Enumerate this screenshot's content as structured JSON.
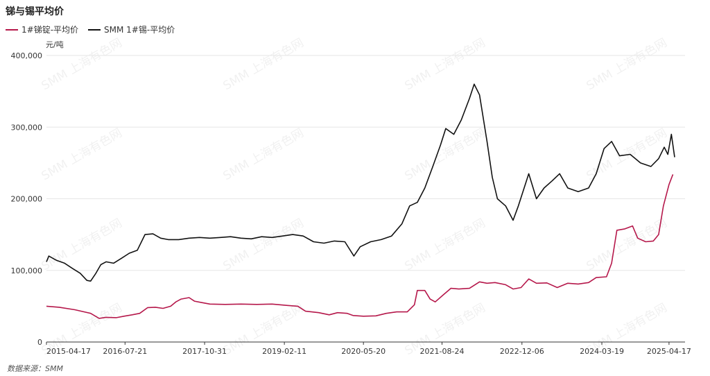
{
  "title": "锑与锡平均价",
  "unit": "元/吨",
  "source": "数据来源：SMM",
  "watermark": "SMM 上海有色网",
  "chart_data": {
    "type": "line",
    "title": "锑与锡平均价",
    "ylabel": "元/吨",
    "ylim": [
      0,
      400000
    ],
    "yticks": [
      0,
      100000,
      200000,
      300000,
      400000
    ],
    "ytick_labels": [
      "0",
      "100,000",
      "200,000",
      "300,000",
      "400,000"
    ],
    "xlim": [
      "2015-04-17",
      "2025-07-20"
    ],
    "xticks": [
      "2015-04-17",
      "2016-07-21",
      "2017-10-31",
      "2019-02-11",
      "2020-05-20",
      "2021-08-24",
      "2022-12-06",
      "2024-03-19",
      "2025-04-17"
    ],
    "grid": true,
    "legend_position": "top-left",
    "series": [
      {
        "name": "1#锑锭-平均价",
        "color": "#b5174a",
        "points": [
          [
            "2015-04-17",
            50000
          ],
          [
            "2015-07-01",
            48500
          ],
          [
            "2015-10-01",
            45000
          ],
          [
            "2016-01-01",
            40000
          ],
          [
            "2016-02-20",
            33000
          ],
          [
            "2016-04-01",
            34500
          ],
          [
            "2016-06-01",
            34000
          ],
          [
            "2016-07-15",
            36000
          ],
          [
            "2016-09-01",
            38000
          ],
          [
            "2016-10-15",
            40000
          ],
          [
            "2016-12-01",
            48000
          ],
          [
            "2017-01-15",
            48500
          ],
          [
            "2017-03-01",
            47000
          ],
          [
            "2017-04-15",
            50000
          ],
          [
            "2017-05-15",
            56000
          ],
          [
            "2017-06-15",
            60000
          ],
          [
            "2017-08-01",
            62000
          ],
          [
            "2017-09-01",
            57000
          ],
          [
            "2017-10-15",
            55000
          ],
          [
            "2017-12-01",
            53000
          ],
          [
            "2018-03-01",
            52500
          ],
          [
            "2018-06-01",
            53000
          ],
          [
            "2018-09-01",
            52500
          ],
          [
            "2018-12-01",
            53000
          ],
          [
            "2019-03-01",
            51000
          ],
          [
            "2019-05-01",
            50000
          ],
          [
            "2019-06-15",
            43000
          ],
          [
            "2019-09-01",
            41000
          ],
          [
            "2019-11-01",
            38000
          ],
          [
            "2019-12-20",
            41000
          ],
          [
            "2020-02-15",
            40000
          ],
          [
            "2020-03-20",
            37000
          ],
          [
            "2020-05-20",
            36000
          ],
          [
            "2020-08-01",
            36500
          ],
          [
            "2020-10-01",
            40000
          ],
          [
            "2020-12-01",
            42000
          ],
          [
            "2021-02-01",
            42000
          ],
          [
            "2021-03-15",
            52000
          ],
          [
            "2021-04-01",
            72000
          ],
          [
            "2021-05-15",
            72000
          ],
          [
            "2021-06-15",
            60000
          ],
          [
            "2021-07-15",
            56000
          ],
          [
            "2021-09-01",
            66000
          ],
          [
            "2021-10-15",
            75000
          ],
          [
            "2021-12-01",
            74000
          ],
          [
            "2022-02-01",
            75000
          ],
          [
            "2022-04-01",
            84000
          ],
          [
            "2022-05-15",
            82000
          ],
          [
            "2022-07-01",
            83000
          ],
          [
            "2022-09-01",
            80000
          ],
          [
            "2022-10-15",
            74000
          ],
          [
            "2022-12-01",
            76000
          ],
          [
            "2023-01-15",
            88000
          ],
          [
            "2023-03-01",
            82000
          ],
          [
            "2023-05-01",
            82500
          ],
          [
            "2023-07-01",
            76000
          ],
          [
            "2023-09-01",
            82000
          ],
          [
            "2023-11-01",
            81000
          ],
          [
            "2024-01-01",
            83000
          ],
          [
            "2024-02-15",
            90000
          ],
          [
            "2024-04-15",
            91000
          ],
          [
            "2024-05-15",
            110000
          ],
          [
            "2024-06-15",
            156000
          ],
          [
            "2024-08-01",
            158000
          ],
          [
            "2024-09-15",
            162000
          ],
          [
            "2024-10-15",
            145000
          ],
          [
            "2024-12-01",
            140000
          ],
          [
            "2025-01-15",
            141000
          ],
          [
            "2025-02-15",
            150000
          ],
          [
            "2025-03-15",
            190000
          ],
          [
            "2025-04-17",
            220000
          ],
          [
            "2025-05-10",
            234000
          ]
        ]
      },
      {
        "name": "SMM 1#锡-平均价",
        "color": "#111111",
        "points": [
          [
            "2015-04-17",
            112000
          ],
          [
            "2015-05-01",
            120000
          ],
          [
            "2015-06-15",
            114000
          ],
          [
            "2015-08-01",
            110000
          ],
          [
            "2015-09-15",
            103000
          ],
          [
            "2015-11-01",
            96000
          ],
          [
            "2015-12-10",
            86000
          ],
          [
            "2016-01-01",
            85000
          ],
          [
            "2016-02-01",
            96000
          ],
          [
            "2016-03-01",
            108000
          ],
          [
            "2016-04-01",
            112000
          ],
          [
            "2016-05-15",
            110000
          ],
          [
            "2016-07-01",
            117000
          ],
          [
            "2016-08-15",
            124000
          ],
          [
            "2016-10-01",
            128000
          ],
          [
            "2016-11-15",
            150000
          ],
          [
            "2017-01-01",
            151000
          ],
          [
            "2017-02-15",
            145000
          ],
          [
            "2017-04-01",
            143000
          ],
          [
            "2017-06-01",
            143000
          ],
          [
            "2017-08-01",
            145000
          ],
          [
            "2017-10-01",
            146000
          ],
          [
            "2017-12-01",
            145000
          ],
          [
            "2018-02-01",
            146000
          ],
          [
            "2018-04-01",
            147000
          ],
          [
            "2018-06-01",
            145000
          ],
          [
            "2018-08-01",
            144000
          ],
          [
            "2018-10-01",
            147000
          ],
          [
            "2018-12-01",
            146000
          ],
          [
            "2019-02-01",
            148000
          ],
          [
            "2019-04-01",
            150000
          ],
          [
            "2019-06-01",
            148000
          ],
          [
            "2019-08-01",
            140000
          ],
          [
            "2019-10-01",
            138000
          ],
          [
            "2019-12-01",
            141000
          ],
          [
            "2020-02-01",
            140000
          ],
          [
            "2020-03-25",
            120000
          ],
          [
            "2020-05-01",
            133000
          ],
          [
            "2020-07-01",
            140000
          ],
          [
            "2020-09-01",
            143000
          ],
          [
            "2020-11-01",
            148000
          ],
          [
            "2021-01-01",
            165000
          ],
          [
            "2021-02-15",
            190000
          ],
          [
            "2021-04-01",
            195000
          ],
          [
            "2021-05-15",
            215000
          ],
          [
            "2021-07-01",
            245000
          ],
          [
            "2021-08-15",
            275000
          ],
          [
            "2021-09-15",
            298000
          ],
          [
            "2021-11-01",
            290000
          ],
          [
            "2021-12-15",
            310000
          ],
          [
            "2022-02-01",
            340000
          ],
          [
            "2022-03-01",
            360000
          ],
          [
            "2022-04-01",
            345000
          ],
          [
            "2022-05-15",
            280000
          ],
          [
            "2022-06-15",
            230000
          ],
          [
            "2022-07-15",
            200000
          ],
          [
            "2022-09-01",
            190000
          ],
          [
            "2022-10-15",
            170000
          ],
          [
            "2022-11-15",
            190000
          ],
          [
            "2023-01-15",
            235000
          ],
          [
            "2023-03-01",
            200000
          ],
          [
            "2023-04-15",
            215000
          ],
          [
            "2023-06-01",
            225000
          ],
          [
            "2023-07-15",
            235000
          ],
          [
            "2023-09-01",
            215000
          ],
          [
            "2023-11-01",
            210000
          ],
          [
            "2024-01-01",
            215000
          ],
          [
            "2024-02-15",
            235000
          ],
          [
            "2024-04-01",
            270000
          ],
          [
            "2024-05-15",
            280000
          ],
          [
            "2024-07-01",
            260000
          ],
          [
            "2024-09-01",
            262000
          ],
          [
            "2024-11-01",
            250000
          ],
          [
            "2025-01-01",
            245000
          ],
          [
            "2025-02-15",
            256000
          ],
          [
            "2025-03-20",
            272000
          ],
          [
            "2025-04-10",
            262000
          ],
          [
            "2025-05-01",
            290000
          ],
          [
            "2025-05-20",
            258000
          ]
        ]
      }
    ]
  }
}
